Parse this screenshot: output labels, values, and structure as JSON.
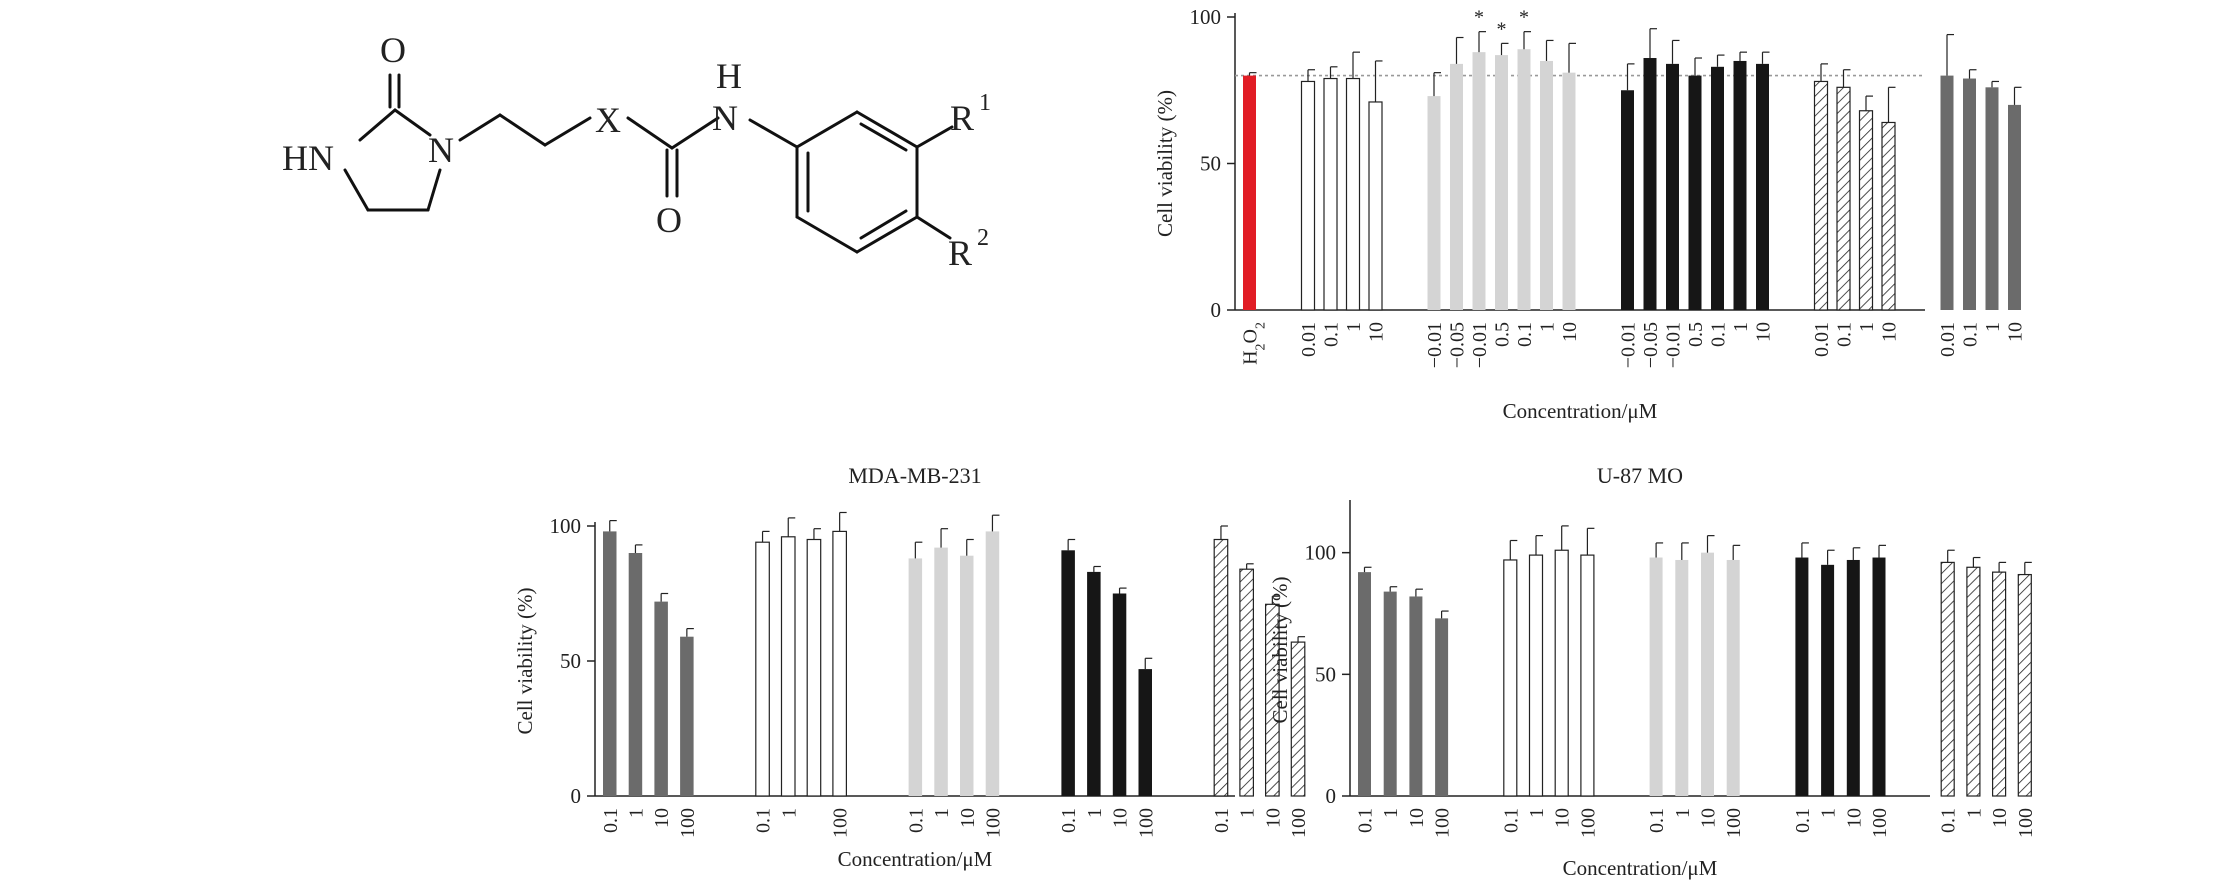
{
  "structure": {
    "labels": {
      "o_top": "O",
      "hn": "HN",
      "n_ring": "N",
      "x": "X",
      "h": "H",
      "n_amide": "N",
      "o_bottom": "O",
      "r": "R",
      "sup1": "1",
      "sup2": "2"
    }
  },
  "colors": {
    "red": "#e11d25",
    "gray": "#6b6b6b",
    "light": "#d4d4d4",
    "black": "#161616",
    "white": "#ffffff",
    "outline": "#222222"
  },
  "chart_data": [
    {
      "type": "bar",
      "title": "",
      "xlabel": "Concentration/μM",
      "ylabel": "Cell viability (%)",
      "ylim": [
        0,
        100
      ],
      "yticks": [
        0,
        50,
        100
      ],
      "reference_line": 80,
      "groups": [
        {
          "style": "red",
          "bars": [
            {
              "x": "H2O2",
              "value": 80,
              "err": 1
            }
          ]
        },
        {
          "style": "white",
          "bars": [
            {
              "x": "0.01",
              "value": 78,
              "err": 4
            },
            {
              "x": "0.1",
              "value": 79,
              "err": 4
            },
            {
              "x": "1",
              "value": 79,
              "err": 9
            },
            {
              "x": "10",
              "value": 71,
              "err": 14
            }
          ]
        },
        {
          "style": "light",
          "bars": [
            {
              "x": "−0.01",
              "value": 73,
              "err": 8
            },
            {
              "x": "−0.05",
              "value": 84,
              "err": 9
            },
            {
              "x": "−0.01",
              "value": 88,
              "err": 7,
              "star": true
            },
            {
              "x": "0.5",
              "value": 87,
              "err": 4,
              "star": true
            },
            {
              "x": "0.1",
              "value": 89,
              "err": 6,
              "star": true
            },
            {
              "x": "1",
              "value": 85,
              "err": 7
            },
            {
              "x": "10",
              "value": 81,
              "err": 10
            }
          ]
        },
        {
          "style": "black",
          "bars": [
            {
              "x": "−0.01",
              "value": 75,
              "err": 9
            },
            {
              "x": "−0.05",
              "value": 86,
              "err": 10
            },
            {
              "x": "−0.01",
              "value": 84,
              "err": 8
            },
            {
              "x": "0.5",
              "value": 80,
              "err": 6
            },
            {
              "x": "0.1",
              "value": 83,
              "err": 4
            },
            {
              "x": "1",
              "value": 85,
              "err": 3
            },
            {
              "x": "10",
              "value": 84,
              "err": 4
            }
          ]
        },
        {
          "style": "hatch",
          "bars": [
            {
              "x": "0.01",
              "value": 78,
              "err": 6
            },
            {
              "x": "0.1",
              "value": 76,
              "err": 6
            },
            {
              "x": "1",
              "value": 68,
              "err": 5
            },
            {
              "x": "10",
              "value": 64,
              "err": 12
            }
          ]
        },
        {
          "style": "gray",
          "bars": [
            {
              "x": "0.01",
              "value": 80,
              "err": 14
            },
            {
              "x": "0.1",
              "value": 79,
              "err": 3
            },
            {
              "x": "1",
              "value": 76,
              "err": 2
            },
            {
              "x": "10",
              "value": 70,
              "err": 6
            }
          ]
        }
      ]
    },
    {
      "type": "bar",
      "title": "MDA-MB-231",
      "xlabel": "Concentration/μM",
      "ylabel": "Cell viability (%)",
      "ylim": [
        0,
        100
      ],
      "yticks": [
        0,
        50,
        100
      ],
      "groups": [
        {
          "style": "gray",
          "bars": [
            {
              "x": "0.1",
              "value": 98,
              "err": 4
            },
            {
              "x": "1",
              "value": 90,
              "err": 3
            },
            {
              "x": "10",
              "value": 72,
              "err": 3
            },
            {
              "x": "100",
              "value": 59,
              "err": 3
            }
          ]
        },
        {
          "style": "white",
          "bars": [
            {
              "x": "0.1",
              "value": 94,
              "err": 4
            },
            {
              "x": "1",
              "value": 96,
              "err": 7
            },
            {
              "x": "",
              "value": 95,
              "err": 4
            },
            {
              "x": "100",
              "value": 98,
              "err": 7
            }
          ]
        },
        {
          "style": "light",
          "bars": [
            {
              "x": "0.1",
              "value": 88,
              "err": 6
            },
            {
              "x": "1",
              "value": 92,
              "err": 7
            },
            {
              "x": "10",
              "value": 89,
              "err": 6
            },
            {
              "x": "100",
              "value": 98,
              "err": 6
            }
          ]
        },
        {
          "style": "black",
          "bars": [
            {
              "x": "0.1",
              "value": 91,
              "err": 4
            },
            {
              "x": "1",
              "value": 83,
              "err": 2
            },
            {
              "x": "10",
              "value": 75,
              "err": 2
            },
            {
              "x": "100",
              "value": 47,
              "err": 4
            }
          ]
        },
        {
          "style": "hatch",
          "bars": [
            {
              "x": "0.1",
              "value": 95,
              "err": 5
            },
            {
              "x": "1",
              "value": 84,
              "err": 2
            },
            {
              "x": "10",
              "value": 71,
              "err": 3
            },
            {
              "x": "100",
              "value": 57,
              "err": 2
            }
          ]
        }
      ]
    },
    {
      "type": "bar",
      "title": "U-87 MO",
      "xlabel": "Concentration/μM",
      "ylabel": "Cell viability (%)",
      "ylim": [
        0,
        120
      ],
      "yticks": [
        0,
        50,
        100
      ],
      "groups": [
        {
          "style": "gray",
          "bars": [
            {
              "x": "0.1",
              "value": 92,
              "err": 2
            },
            {
              "x": "1",
              "value": 84,
              "err": 2
            },
            {
              "x": "10",
              "value": 82,
              "err": 3
            },
            {
              "x": "100",
              "value": 73,
              "err": 3
            }
          ]
        },
        {
          "style": "white",
          "bars": [
            {
              "x": "0.1",
              "value": 97,
              "err": 8
            },
            {
              "x": "1",
              "value": 99,
              "err": 8
            },
            {
              "x": "10",
              "value": 101,
              "err": 10
            },
            {
              "x": "100",
              "value": 99,
              "err": 11
            }
          ]
        },
        {
          "style": "light",
          "bars": [
            {
              "x": "0.1",
              "value": 98,
              "err": 6
            },
            {
              "x": "1",
              "value": 97,
              "err": 7
            },
            {
              "x": "10",
              "value": 100,
              "err": 7
            },
            {
              "x": "100",
              "value": 97,
              "err": 6
            }
          ]
        },
        {
          "style": "black",
          "bars": [
            {
              "x": "0.1",
              "value": 98,
              "err": 6
            },
            {
              "x": "1",
              "value": 95,
              "err": 6
            },
            {
              "x": "10",
              "value": 97,
              "err": 5
            },
            {
              "x": "100",
              "value": 98,
              "err": 5
            }
          ]
        },
        {
          "style": "hatch",
          "bars": [
            {
              "x": "0.1",
              "value": 96,
              "err": 5
            },
            {
              "x": "1",
              "value": 94,
              "err": 4
            },
            {
              "x": "10",
              "value": 92,
              "err": 4
            },
            {
              "x": "100",
              "value": 91,
              "err": 5
            }
          ]
        }
      ]
    }
  ]
}
